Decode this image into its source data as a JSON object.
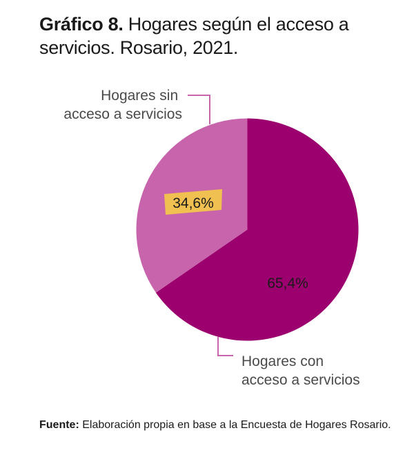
{
  "title": {
    "bold": "Gráfico 8.",
    "text": " Hogares según el acceso a servicios. Rosario, 2021."
  },
  "source": {
    "bold": "Fuente:",
    "text": " Elaboración propia en base a la Encuesta de Hogares Rosario."
  },
  "chart_data": {
    "type": "pie",
    "title": "Gráfico 8. Hogares según el acceso a servicios. Rosario, 2021.",
    "start": "top",
    "direction": "clockwise",
    "slices": [
      {
        "name": "Hogares con acceso a servicios",
        "label_lines": [
          "Hogares con",
          "acceso a servicios"
        ],
        "value": 65.4,
        "value_label": "65,4%",
        "color": "#9b006e",
        "label_position": "bottom"
      },
      {
        "name": "Hogares sin acceso a servicios",
        "label_lines": [
          "Hogares sin",
          "acceso a servicios"
        ],
        "value": 34.6,
        "value_label": "34,6%",
        "color": "#c864ab",
        "label_position": "top-left",
        "value_highlight": "#f0c050"
      }
    ],
    "leader_color": "#c864ab"
  }
}
